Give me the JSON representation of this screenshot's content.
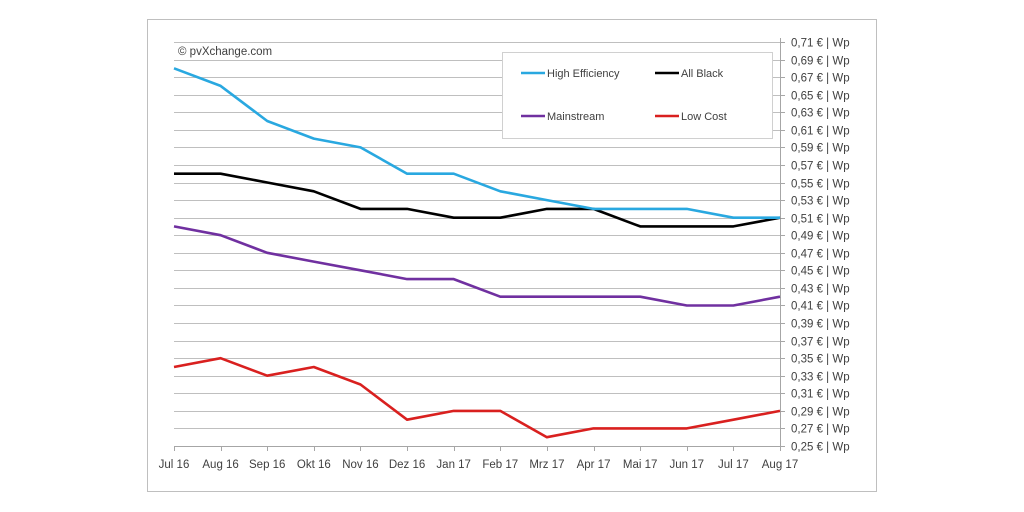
{
  "chart_data": {
    "type": "line",
    "title": "",
    "xlabel": "",
    "ylabel": "",
    "copyright": "© pvXchange.com",
    "categories": [
      "Jul 16",
      "Aug 16",
      "Sep 16",
      "Okt 16",
      "Nov 16",
      "Dez 16",
      "Jan 17",
      "Feb 17",
      "Mrz 17",
      "Apr 17",
      "Mai 17",
      "Jun 17",
      "Jul 17",
      "Aug 17"
    ],
    "ylim": [
      0.25,
      0.71
    ],
    "y_ticks": [
      0.71,
      0.69,
      0.67,
      0.65,
      0.63,
      0.61,
      0.59,
      0.57,
      0.55,
      0.53,
      0.51,
      0.49,
      0.47,
      0.45,
      0.43,
      0.41,
      0.39,
      0.37,
      0.35,
      0.33,
      0.31,
      0.29,
      0.27,
      0.25
    ],
    "y_tick_suffix": " € | Wp",
    "y_axis_position": "right",
    "grid": true,
    "legend_position": "top-right",
    "series": [
      {
        "name": "High Efficiency",
        "color": "#29a8e0",
        "values": [
          0.68,
          0.66,
          0.62,
          0.6,
          0.59,
          0.56,
          0.56,
          0.54,
          0.53,
          0.52,
          0.52,
          0.52,
          0.51,
          0.51
        ]
      },
      {
        "name": "All Black",
        "color": "#000000",
        "values": [
          0.56,
          0.56,
          0.55,
          0.54,
          0.52,
          0.52,
          0.51,
          0.51,
          0.52,
          0.52,
          0.5,
          0.5,
          0.5,
          0.51
        ]
      },
      {
        "name": "Mainstream",
        "color": "#7030a0",
        "values": [
          0.5,
          0.49,
          0.47,
          0.46,
          0.45,
          0.44,
          0.44,
          0.42,
          0.42,
          0.42,
          0.42,
          0.41,
          0.41,
          0.42
        ]
      },
      {
        "name": "Low Cost",
        "color": "#d9201f",
        "values": [
          0.34,
          0.35,
          0.33,
          0.34,
          0.32,
          0.28,
          0.29,
          0.29,
          0.26,
          0.27,
          0.27,
          0.27,
          0.28,
          0.29
        ]
      }
    ]
  }
}
